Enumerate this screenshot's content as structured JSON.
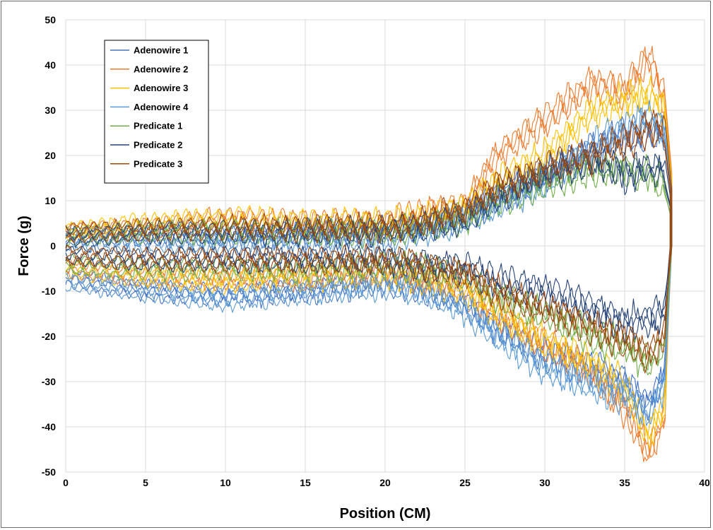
{
  "chart_data": {
    "type": "line",
    "xlabel": "Position (CM)",
    "ylabel": "Force (g)",
    "xlim": [
      0,
      40
    ],
    "ylim": [
      -50,
      50
    ],
    "x_ticks": [
      "0",
      "5",
      "10",
      "15",
      "20",
      "25",
      "30",
      "35",
      "40"
    ],
    "y_ticks": [
      "50",
      "40",
      "30",
      "20",
      "10",
      "0",
      "-10",
      "-20",
      "-30",
      "-40",
      "-50"
    ],
    "grid": true,
    "legend_position": "top-left",
    "x_profile": [
      0,
      5,
      10,
      15,
      20,
      22,
      25,
      27,
      30,
      33,
      35,
      36.5,
      37.5,
      38
    ],
    "series": [
      {
        "name": "Adenowire 1",
        "color": "#4472c4",
        "upper": [
          2,
          2,
          2,
          2.5,
          3,
          4,
          6,
          10,
          15,
          22,
          24,
          25,
          25,
          0
        ],
        "lower": [
          -7,
          -10,
          -11,
          -10,
          -8,
          -9,
          -13,
          -18,
          -24,
          -27,
          -30,
          -35,
          -28,
          0
        ]
      },
      {
        "name": "Adenowire 2",
        "color": "#ed7d31",
        "upper": [
          3,
          4,
          6,
          5,
          5,
          7,
          9,
          20,
          28,
          36,
          34,
          42,
          32,
          0
        ],
        "lower": [
          -5,
          -7,
          -7,
          -7,
          -6,
          -7,
          -10,
          -15,
          -22,
          -28,
          -36,
          -46,
          -38,
          0
        ]
      },
      {
        "name": "Adenowire 3",
        "color": "#ffc000",
        "upper": [
          3,
          5,
          6,
          5,
          5,
          6,
          8,
          14,
          20,
          30,
          32,
          33,
          30,
          0
        ],
        "lower": [
          -5,
          -7,
          -8,
          -7,
          -6,
          -7,
          -10,
          -15,
          -21,
          -26,
          -31,
          -42,
          -35,
          0
        ]
      },
      {
        "name": "Adenowire 4",
        "color": "#5b9bd5",
        "upper": [
          1,
          1,
          0.5,
          1,
          2,
          3,
          6,
          9,
          14,
          22,
          26,
          28,
          26,
          0
        ],
        "lower": [
          -8,
          -10,
          -12,
          -10,
          -9,
          -10,
          -14,
          -20,
          -27,
          -31,
          -33,
          -37,
          -30,
          0
        ]
      },
      {
        "name": "Predicate 1",
        "color": "#70ad47",
        "upper": [
          2,
          3,
          3,
          3,
          3,
          4,
          6,
          10,
          14,
          17,
          17,
          16,
          14,
          0
        ],
        "lower": [
          -4,
          -5,
          -5,
          -5,
          -4,
          -5,
          -7,
          -11,
          -15,
          -20,
          -22,
          -26,
          -22,
          0
        ]
      },
      {
        "name": "Predicate 2",
        "color": "#264478",
        "upper": [
          2,
          3,
          3,
          3,
          3.5,
          4,
          6,
          11,
          16,
          19,
          16,
          17,
          17,
          0
        ],
        "lower": [
          -2,
          -3,
          -3,
          -3,
          -3,
          -4,
          -5,
          -8,
          -10,
          -14,
          -17,
          -16,
          -15,
          0
        ]
      },
      {
        "name": "Predicate 3",
        "color": "#9e480e",
        "upper": [
          3,
          3.5,
          4,
          4,
          4,
          5,
          8,
          13,
          17,
          20,
          23,
          26,
          25,
          0
        ],
        "lower": [
          -2,
          -3,
          -3,
          -3,
          -3,
          -4,
          -6,
          -10,
          -14,
          -18,
          -21,
          -24,
          -20,
          0
        ]
      }
    ]
  }
}
